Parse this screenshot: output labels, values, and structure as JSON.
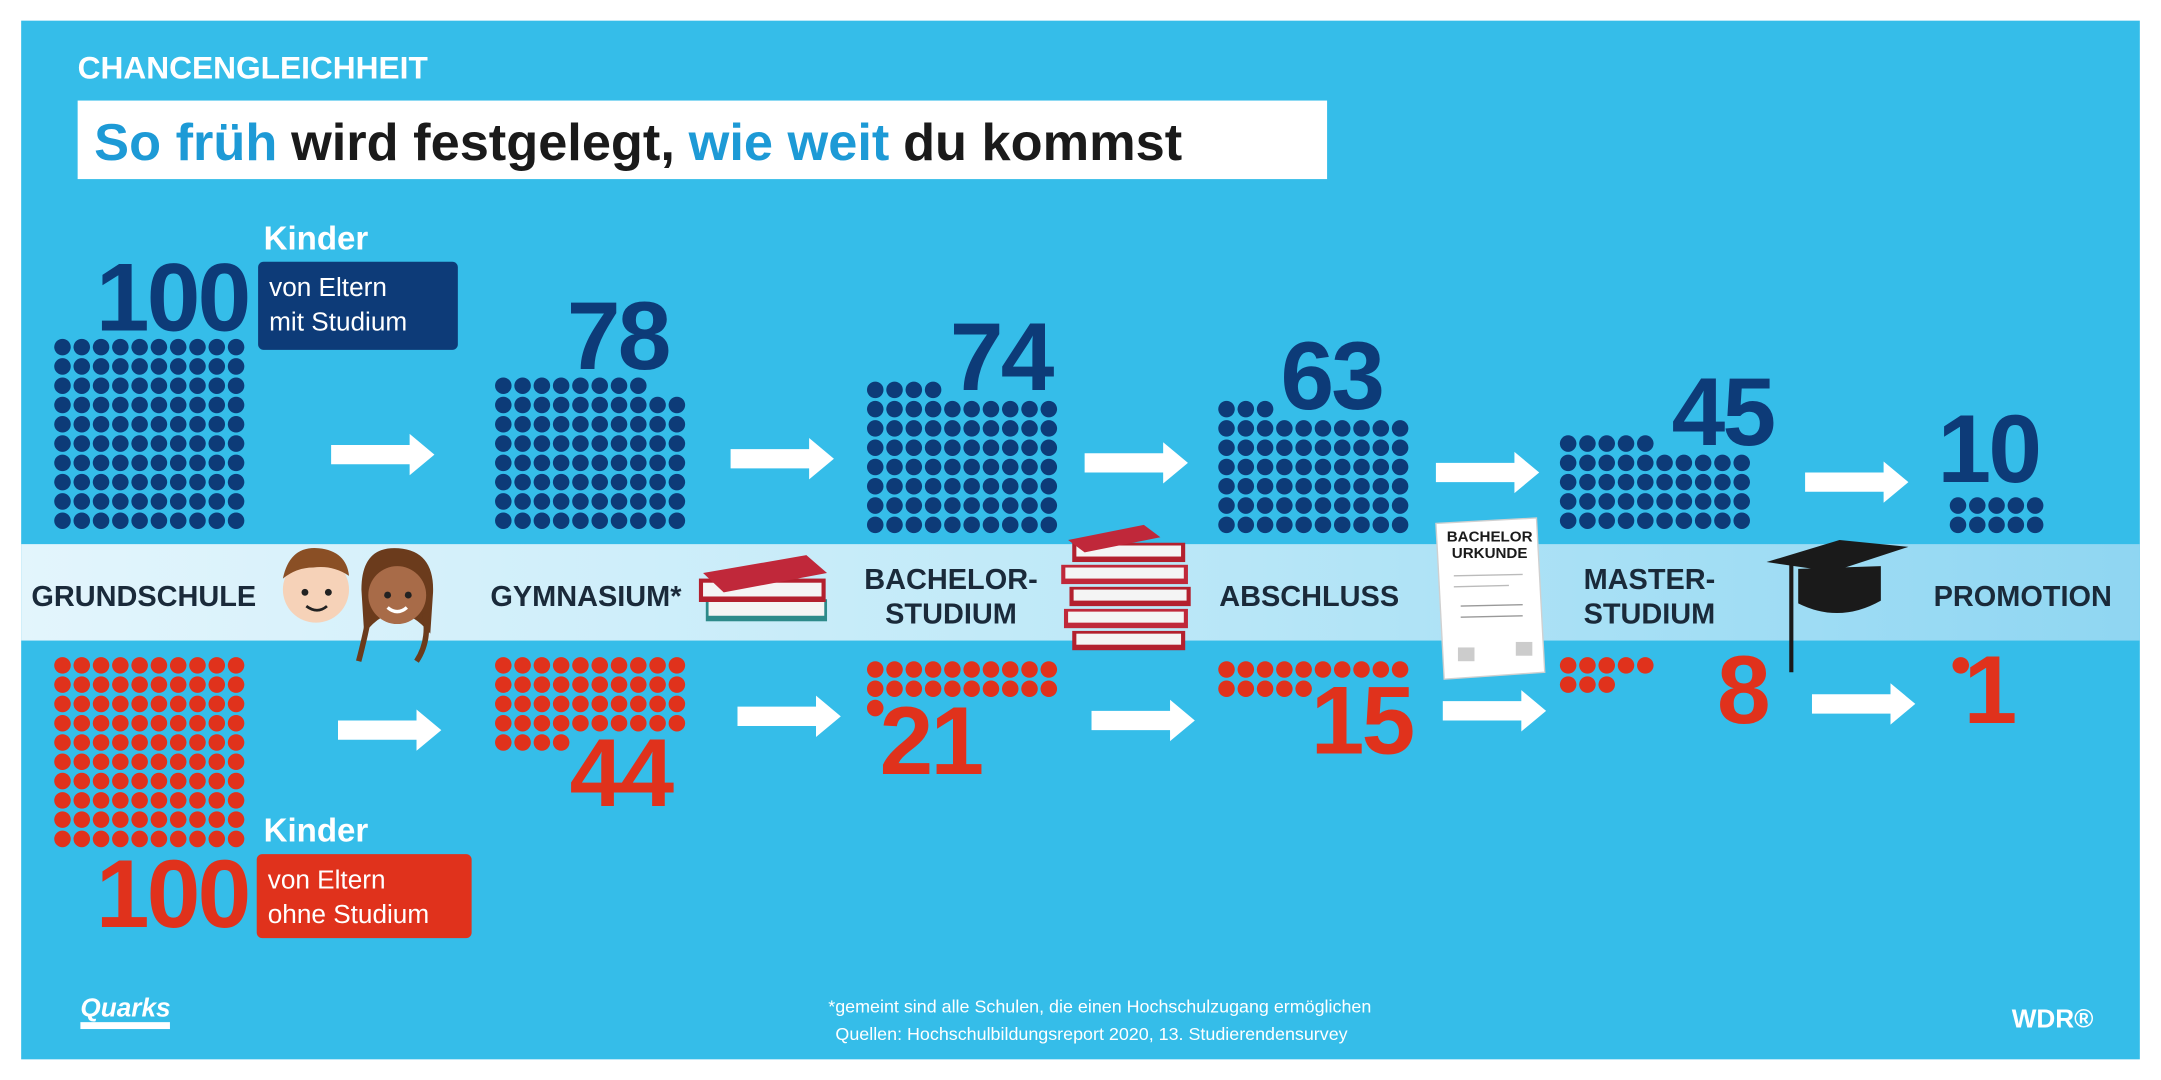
{
  "chart_data": {
    "type": "dots",
    "kicker": "CHANCENGLEICHHEIT",
    "title": [
      {
        "text": "So früh",
        "color": "#1d9ad6"
      },
      {
        "text": "wird festgelegt,",
        "color": "#1a1a1a"
      },
      {
        "text": "wie weit",
        "color": "#1d9ad6"
      },
      {
        "text": "du kommst",
        "color": "#1a1a1a"
      }
    ],
    "categories": [
      [
        "GRUNDSCHULE"
      ],
      [
        "GYMNASIUM*"
      ],
      [
        "BACHELOR-",
        "STUDIUM"
      ],
      [
        "ABSCHLUSS"
      ],
      [
        "MASTER-",
        "STUDIUM"
      ],
      [
        "PROMOTION"
      ]
    ],
    "series": [
      {
        "name": "Kinder",
        "description": [
          "von Eltern",
          "mit Studium"
        ],
        "color": "#0d3b78",
        "values": [
          100,
          78,
          74,
          63,
          45,
          10
        ]
      },
      {
        "name": "Kinder",
        "description": [
          "von Eltern",
          "ohne Studium"
        ],
        "color": "#e0321c",
        "values": [
          100,
          44,
          21,
          15,
          8,
          1
        ]
      }
    ],
    "diploma": [
      "BACHELOR",
      "URKUNDE"
    ],
    "footnotes": [
      "*gemeint sind alle Schulen, die einen Hochschulzugang ermöglichen",
      "Quellen: Hochschulbildungsreport 2020, 13. Studierendensurvey"
    ],
    "logos": [
      "Quarks",
      "WDR®"
    ]
  }
}
